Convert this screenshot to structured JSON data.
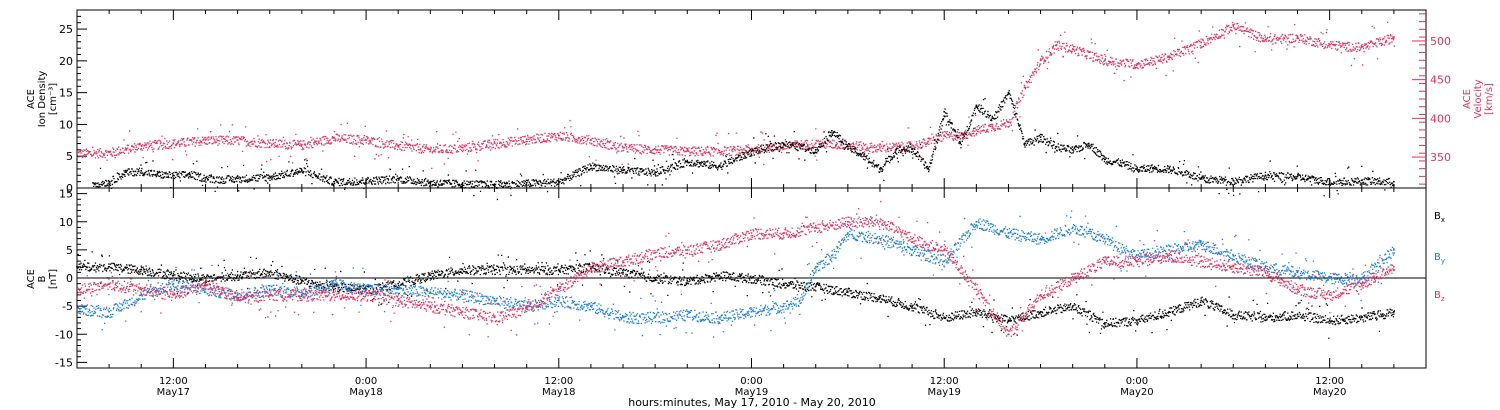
{
  "footer": "hours:minutes, May 17, 2010 - May 20, 2010",
  "colors": {
    "black": "#000000",
    "pink": "#e8305e",
    "blue": "#1c7fe0"
  },
  "chart_data": [
    {
      "type": "scatter",
      "panel": "top",
      "left_ylabel_lines": [
        "ACE",
        "Ion Density",
        "[cm⁻³]"
      ],
      "right_ylabel_lines": [
        "ACE",
        "Velocity",
        "[km/s]"
      ],
      "ylim_left": [
        0,
        28
      ],
      "ylim_right": [
        310,
        540
      ],
      "yticks_left": [
        "0",
        "5",
        "10",
        "15",
        "20",
        "25"
      ],
      "yticks_right": [
        "350",
        "400",
        "450",
        "500"
      ],
      "x_hours_range": [
        6,
        90
      ],
      "series": [
        {
          "axis": "left",
          "color": "#000000",
          "x": [
            7,
            8,
            9,
            10,
            11,
            12,
            13,
            14,
            15,
            16,
            18,
            20,
            22,
            24,
            26,
            28,
            30,
            32,
            34,
            36,
            38,
            40,
            42,
            44,
            46,
            48,
            50,
            52,
            53,
            54,
            55,
            56,
            57,
            58,
            59,
            60,
            61,
            62,
            63,
            64,
            65,
            66,
            67,
            68,
            69,
            70,
            71,
            72,
            73,
            74,
            75,
            76,
            78,
            80,
            82,
            84,
            86,
            88
          ],
          "y": [
            0.8,
            1.0,
            2.5,
            2.7,
            2.2,
            2.0,
            2.2,
            1.6,
            1.4,
            1.5,
            1.8,
            2.8,
            1.0,
            1.2,
            1.5,
            0.9,
            0.7,
            0.6,
            0.8,
            1.0,
            3.5,
            2.8,
            2.5,
            4.2,
            3.5,
            5.8,
            7.0,
            6.0,
            9.0,
            6.5,
            5.0,
            3.0,
            6.0,
            6.2,
            3.0,
            12.0,
            7.0,
            13.0,
            11.0,
            15.0,
            7.0,
            8.0,
            6.5,
            6.0,
            7.0,
            4.5,
            4.0,
            3.0,
            3.2,
            3.0,
            2.5,
            1.5,
            1.2,
            2.0,
            1.8,
            1.0,
            1.2,
            1.0
          ]
        },
        {
          "axis": "right",
          "color": "#e8305e",
          "x": [
            6,
            8,
            10,
            12,
            14,
            16,
            18,
            20,
            22,
            24,
            26,
            28,
            30,
            32,
            34,
            36,
            38,
            40,
            42,
            44,
            46,
            48,
            50,
            52,
            54,
            56,
            58,
            59,
            60,
            61,
            62,
            63,
            64,
            65,
            66,
            67,
            68,
            70,
            72,
            74,
            76,
            78,
            80,
            82,
            84,
            86,
            88
          ],
          "y": [
            355,
            356,
            365,
            368,
            372,
            372,
            368,
            366,
            375,
            372,
            365,
            360,
            362,
            368,
            373,
            378,
            372,
            362,
            360,
            358,
            358,
            360,
            365,
            368,
            366,
            362,
            365,
            370,
            378,
            378,
            385,
            390,
            395,
            440,
            475,
            495,
            490,
            475,
            470,
            480,
            498,
            520,
            502,
            505,
            495,
            492,
            505
          ]
        }
      ]
    },
    {
      "type": "scatter",
      "panel": "bottom",
      "left_ylabel_lines": [
        "ACE",
        "B",
        "[nT]"
      ],
      "ylim": [
        -16,
        16
      ],
      "yticks": [
        "-15",
        "-10",
        "-5",
        "0",
        "5",
        "10",
        "15"
      ],
      "x_hours_range": [
        6,
        90
      ],
      "xticks": [
        {
          "time": "12:00",
          "date": "May17"
        },
        {
          "time": "0:00",
          "date": "May18"
        },
        {
          "time": "12:00",
          "date": "May18"
        },
        {
          "time": "0:00",
          "date": "May19"
        },
        {
          "time": "12:00",
          "date": "May19"
        },
        {
          "time": "0:00",
          "date": "May20"
        },
        {
          "time": "12:00",
          "date": "May20"
        }
      ],
      "series": [
        {
          "name": "B",
          "sub": "x",
          "color": "#000000",
          "x": [
            6,
            8,
            10,
            12,
            14,
            16,
            18,
            20,
            22,
            24,
            26,
            28,
            30,
            32,
            34,
            36,
            38,
            40,
            42,
            44,
            46,
            48,
            50,
            52,
            54,
            56,
            58,
            60,
            62,
            64,
            66,
            68,
            70,
            72,
            74,
            76,
            78,
            80,
            82,
            84,
            86,
            88
          ],
          "y": [
            2.0,
            2.0,
            1.5,
            0.5,
            0.0,
            0.5,
            1.0,
            -0.5,
            -1.5,
            -2.0,
            -1.0,
            0.5,
            1.5,
            1.5,
            1.5,
            1.5,
            2.0,
            1.0,
            0.0,
            -0.5,
            0.5,
            0.0,
            -1.0,
            -1.5,
            -2.5,
            -3.5,
            -5.0,
            -7.0,
            -6.0,
            -7.5,
            -6.0,
            -5.0,
            -8.0,
            -7.5,
            -6.0,
            -4.0,
            -6.5,
            -7.0,
            -6.5,
            -7.5,
            -7.0,
            -6.0
          ]
        },
        {
          "name": "B",
          "sub": "y",
          "color": "#1c7fe0",
          "x": [
            6,
            8,
            10,
            12,
            14,
            16,
            18,
            20,
            22,
            24,
            26,
            28,
            30,
            32,
            34,
            36,
            38,
            40,
            42,
            44,
            46,
            48,
            50,
            51,
            52,
            53,
            54,
            56,
            58,
            60,
            62,
            64,
            66,
            68,
            70,
            72,
            74,
            76,
            78,
            80,
            82,
            84,
            86,
            88
          ],
          "y": [
            -5.5,
            -6.0,
            -3.0,
            -1.0,
            -2.0,
            -3.0,
            -2.0,
            -2.5,
            -1.0,
            -2.0,
            -2.0,
            -2.5,
            -3.0,
            -4.0,
            -5.0,
            -4.0,
            -5.0,
            -7.0,
            -7.0,
            -6.5,
            -7.0,
            -6.0,
            -5.0,
            -4.0,
            2.0,
            4.0,
            8.0,
            7.0,
            5.0,
            3.0,
            10.0,
            8.0,
            7.0,
            9.0,
            7.0,
            4.0,
            5.0,
            6.0,
            4.0,
            2.0,
            1.0,
            0.0,
            0.0,
            5.0
          ]
        },
        {
          "name": "B",
          "sub": "z",
          "color": "#e8305e",
          "x": [
            6,
            8,
            10,
            12,
            14,
            16,
            18,
            20,
            22,
            24,
            26,
            28,
            30,
            32,
            34,
            36,
            38,
            40,
            42,
            44,
            46,
            48,
            50,
            52,
            54,
            56,
            58,
            60,
            62,
            64,
            66,
            68,
            70,
            72,
            74,
            76,
            78,
            80,
            82,
            84,
            86,
            88
          ],
          "y": [
            -2.0,
            -1.0,
            -2.0,
            -3.0,
            -1.0,
            -3.5,
            -3.0,
            -3.0,
            -3.0,
            -3.0,
            -4.0,
            -5.0,
            -6.0,
            -7.0,
            -5.5,
            -2.0,
            2.0,
            3.0,
            4.5,
            5.0,
            6.0,
            8.0,
            8.0,
            9.0,
            10.0,
            10.0,
            7.0,
            5.0,
            -2.0,
            -10.0,
            -3.0,
            0.0,
            3.0,
            3.0,
            4.0,
            3.0,
            2.0,
            1.0,
            -2.0,
            -3.0,
            -1.0,
            2.0
          ]
        }
      ]
    }
  ]
}
